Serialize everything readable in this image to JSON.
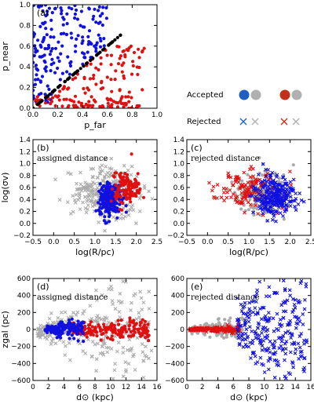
{
  "colors": {
    "blue": "#1010e0",
    "red": "#e01010",
    "gray": "#aaaaaa",
    "black": "#000000",
    "legend_blue": "#1f5fbf",
    "legend_red": "#c0301a",
    "legend_gray": "#b0b0b0"
  },
  "legend": {
    "accepted_label": "Accepted",
    "rejected_label": "Rejected"
  },
  "chart_data": [
    {
      "id": "a",
      "type": "scatter",
      "letter": "(a)",
      "note": "",
      "xlabel": "p_far",
      "ylabel": "p_near",
      "xlim": [
        0,
        1
      ],
      "ylim": [
        0,
        1
      ],
      "xticks": [
        "0.0",
        "0.2",
        "0.4",
        "0.6",
        "0.8",
        "1.0"
      ],
      "xtickvals": [
        0,
        0.2,
        0.4,
        0.6,
        0.8,
        1.0
      ],
      "yticks": [
        "0.0",
        "0.2",
        "0.4",
        "0.6",
        "0.8",
        "1.0"
      ],
      "ytickvals": [
        0,
        0.2,
        0.4,
        0.6,
        0.8,
        1.0
      ],
      "series": [
        {
          "color": "blue",
          "marker": "dot",
          "cloud": {
            "n": 180,
            "kind": "uppertri",
            "seed": 11
          }
        },
        {
          "color": "red",
          "marker": "dot",
          "cloud": {
            "n": 160,
            "kind": "lowertri",
            "seed": 23
          }
        },
        {
          "color": "black",
          "marker": "dot",
          "cloud": {
            "n": 70,
            "kind": "diag",
            "seed": 5
          }
        }
      ]
    },
    {
      "id": "b",
      "type": "scatter",
      "letter": "(b)",
      "note": "assigned distance",
      "xlabel": "log(R/pc)",
      "ylabel": "log(σv)",
      "xlim": [
        -0.5,
        2.5
      ],
      "ylim": [
        -0.2,
        1.4
      ],
      "xticks": [
        "−0.5",
        "0.0",
        "0.5",
        "1.0",
        "1.5",
        "2.0",
        "2.5"
      ],
      "xtickvals": [
        -0.5,
        0,
        0.5,
        1,
        1.5,
        2,
        2.5
      ],
      "yticks": [
        "−0.2",
        "0.0",
        "0.2",
        "0.4",
        "0.6",
        "0.8",
        "1.0",
        "1.2",
        "1.4"
      ],
      "ytickvals": [
        -0.2,
        0,
        0.2,
        0.4,
        0.6,
        0.8,
        1,
        1.2,
        1.4
      ],
      "series": [
        {
          "color": "gray",
          "marker": "x",
          "cloud": {
            "n": 320,
            "kind": "gauss",
            "cx": 1.3,
            "cy": 0.48,
            "sx": 0.42,
            "sy": 0.2,
            "seed": 3
          }
        },
        {
          "color": "blue",
          "marker": "dot",
          "cloud": {
            "n": 230,
            "kind": "gauss",
            "cx": 1.35,
            "cy": 0.4,
            "sx": 0.13,
            "sy": 0.14,
            "seed": 7
          }
        },
        {
          "color": "red",
          "marker": "dot",
          "cloud": {
            "n": 120,
            "kind": "gauss",
            "cx": 1.75,
            "cy": 0.6,
            "sx": 0.17,
            "sy": 0.14,
            "seed": 9
          }
        }
      ]
    },
    {
      "id": "c",
      "type": "scatter",
      "letter": "(c)",
      "note": "rejected distance",
      "xlabel": "log(R/pc)",
      "ylabel": "",
      "xlim": [
        -0.5,
        2.5
      ],
      "ylim": [
        -0.2,
        1.4
      ],
      "xticks": [
        "−0.5",
        "0.0",
        "0.5",
        "1.0",
        "1.5",
        "2.0",
        "2.5"
      ],
      "xtickvals": [
        -0.5,
        0,
        0.5,
        1,
        1.5,
        2,
        2.5
      ],
      "yticks": [
        "−0.2",
        "0.0",
        "0.2",
        "0.4",
        "0.6",
        "0.8",
        "1.0",
        "1.2",
        "1.4"
      ],
      "ytickvals": [
        -0.2,
        0,
        0.2,
        0.4,
        0.6,
        0.8,
        1,
        1.2,
        1.4
      ],
      "series": [
        {
          "color": "gray",
          "marker": "dot",
          "cloud": {
            "n": 180,
            "kind": "gauss",
            "cx": 1.35,
            "cy": 0.5,
            "sx": 0.33,
            "sy": 0.18,
            "seed": 13
          }
        },
        {
          "color": "red",
          "marker": "x",
          "cloud": {
            "n": 140,
            "kind": "gauss",
            "cx": 0.95,
            "cy": 0.55,
            "sx": 0.4,
            "sy": 0.15,
            "seed": 17
          }
        },
        {
          "color": "blue",
          "marker": "x",
          "cloud": {
            "n": 280,
            "kind": "gauss",
            "cx": 1.65,
            "cy": 0.45,
            "sx": 0.25,
            "sy": 0.17,
            "seed": 19
          }
        }
      ]
    },
    {
      "id": "d",
      "type": "scatter",
      "letter": "(d)",
      "note": "assigned distance",
      "xlabel": "d⊙ (kpc)",
      "ylabel": "zgal (pc)",
      "xlim": [
        0,
        16
      ],
      "ylim": [
        -600,
        600
      ],
      "xticks": [
        "0",
        "2",
        "4",
        "6",
        "8",
        "10",
        "12",
        "14",
        "16"
      ],
      "xtickvals": [
        0,
        2,
        4,
        6,
        8,
        10,
        12,
        14,
        16
      ],
      "yticks": [
        "−600",
        "−400",
        "−200",
        "0",
        "200",
        "400",
        "600"
      ],
      "ytickvals": [
        -600,
        -400,
        -200,
        0,
        200,
        400,
        600
      ],
      "series": [
        {
          "color": "gray",
          "marker": "x",
          "cloud": {
            "n": 260,
            "kind": "zband",
            "x0": 0.5,
            "x1": 15.5,
            "base": 20,
            "grow": 25,
            "seed": 29
          }
        },
        {
          "color": "red",
          "marker": "dot",
          "cloud": {
            "n": 180,
            "kind": "zband",
            "x0": 5,
            "x1": 15,
            "base": 12,
            "grow": 4,
            "seed": 31
          }
        },
        {
          "color": "blue",
          "marker": "dot",
          "cloud": {
            "n": 170,
            "kind": "zband",
            "x0": 1.5,
            "x1": 6.5,
            "base": 20,
            "grow": 6,
            "seed": 37
          }
        }
      ]
    },
    {
      "id": "e",
      "type": "scatter",
      "letter": "(e)",
      "note": "rejected distance",
      "xlabel": "d⊙ (kpc)",
      "ylabel": "",
      "xlim": [
        0,
        16
      ],
      "ylim": [
        -600,
        600
      ],
      "xticks": [
        "0",
        "2",
        "4",
        "6",
        "8",
        "10",
        "12",
        "14",
        "16"
      ],
      "xtickvals": [
        0,
        2,
        4,
        6,
        8,
        10,
        12,
        14,
        16
      ],
      "yticks": [
        "−600",
        "−400",
        "−200",
        "0",
        "200",
        "400",
        "600"
      ],
      "ytickvals": [
        -600,
        -400,
        -200,
        0,
        200,
        400,
        600
      ],
      "series": [
        {
          "color": "gray",
          "marker": "dot",
          "cloud": {
            "n": 150,
            "kind": "zband",
            "x0": 0.5,
            "x1": 7.5,
            "base": 15,
            "grow": 8,
            "seed": 41
          }
        },
        {
          "color": "red",
          "marker": "x",
          "cloud": {
            "n": 200,
            "kind": "zband",
            "x0": 0.3,
            "x1": 6.8,
            "base": 5,
            "grow": 3,
            "seed": 43
          }
        },
        {
          "color": "blue",
          "marker": "x",
          "cloud": {
            "n": 260,
            "kind": "zband",
            "x0": 6.5,
            "x1": 15.5,
            "base": 35,
            "grow": 22,
            "seed": 47
          }
        }
      ]
    }
  ]
}
